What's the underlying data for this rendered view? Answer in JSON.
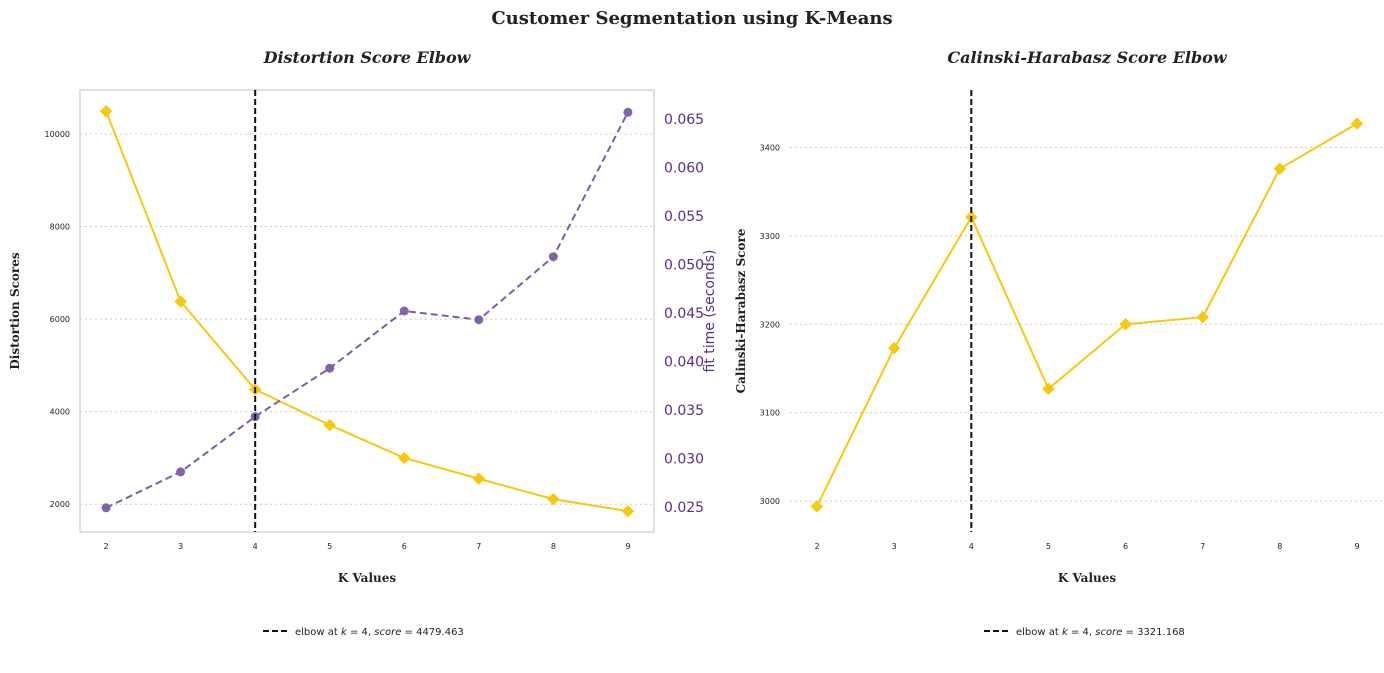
{
  "suptitle": "Customer Segmentation using K-Means",
  "colors": {
    "score_line": "#F9C80E",
    "fit_time_line": "#7B5EA7",
    "fit_time_axis": "#5B2C8F",
    "elbow": "#111111",
    "grid": "#cccccc",
    "frame": "#cccccc",
    "text": "#222222"
  },
  "chart_data": [
    {
      "type": "line",
      "title": "Distortion Score Elbow",
      "xlabel": "K Values",
      "ylabel": "Distortion Scores",
      "y2label": "fit time (seconds)",
      "x": [
        2,
        3,
        4,
        5,
        6,
        7,
        8,
        9
      ],
      "x_ticks": [
        "2",
        "3",
        "4",
        "5",
        "6",
        "7",
        "8",
        "9"
      ],
      "xlim": [
        1.65,
        9.35
      ],
      "ylim": [
        1400,
        10950
      ],
      "y_ticks": [
        2000,
        4000,
        6000,
        8000,
        10000
      ],
      "y2lim": [
        0.0224,
        0.068
      ],
      "y2_ticks": [
        "0.025",
        "0.030",
        "0.035",
        "0.040",
        "0.045",
        "0.050",
        "0.055",
        "0.060",
        "0.065"
      ],
      "grid": true,
      "frame": true,
      "series": [
        {
          "key": "distortion",
          "values": [
            10490,
            6380,
            4479.463,
            3710,
            3000,
            2550,
            2110,
            1850
          ],
          "marker": "diamond",
          "axis": "left"
        },
        {
          "key": "fit_time",
          "values": [
            0.0249,
            0.0286,
            0.0343,
            0.0393,
            0.0452,
            0.0443,
            0.0508,
            0.0657
          ],
          "marker": "circle",
          "axis": "right",
          "dashed": true
        }
      ],
      "elbow_x": 4,
      "legend": {
        "text_prefix": "elbow at ",
        "k_symbol": "k",
        "k_value": " = 4, ",
        "score_symbol": "score",
        "score_value": " = 4479.463"
      },
      "legend_position": "bottom-center"
    },
    {
      "type": "line",
      "title": "Calinski-Harabasz Score Elbow",
      "xlabel": "K Values",
      "ylabel": "Calinski-Harabasz Score",
      "x": [
        2,
        3,
        4,
        5,
        6,
        7,
        8,
        9
      ],
      "x_ticks": [
        "2",
        "3",
        "4",
        "5",
        "6",
        "7",
        "8",
        "9"
      ],
      "xlim": [
        1.65,
        9.35
      ],
      "ylim": [
        2965,
        3465
      ],
      "y_ticks": [
        3000,
        3100,
        3200,
        3300,
        3400
      ],
      "grid": true,
      "frame": false,
      "series": [
        {
          "key": "calinski_harabasz",
          "values": [
            2994,
            3173,
            3321.168,
            3127,
            3200,
            3208,
            3376,
            3427
          ],
          "marker": "diamond",
          "axis": "left"
        }
      ],
      "elbow_x": 4,
      "legend": {
        "text_prefix": "elbow at ",
        "k_symbol": "k",
        "k_value": " = 4, ",
        "score_symbol": "score",
        "score_value": " = 3321.168"
      },
      "legend_position": "bottom-center"
    }
  ]
}
